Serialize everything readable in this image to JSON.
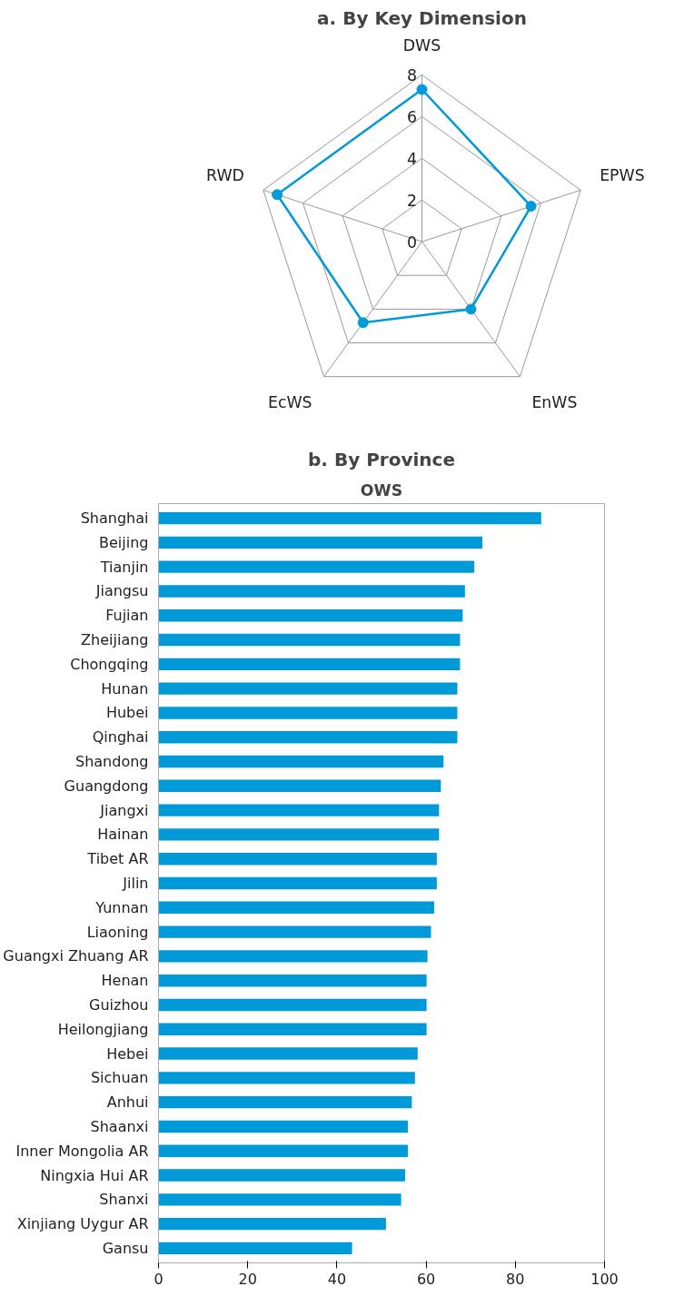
{
  "chart_data": [
    {
      "type": "radar",
      "title": "a. By Key Dimension",
      "categories": [
        "DWS",
        "EPWS",
        "EnWS",
        "EcWS",
        "RWD"
      ],
      "ylim": [
        0,
        8
      ],
      "yticks": [
        0,
        2,
        4,
        6,
        8
      ],
      "grid": true,
      "marker": "circle",
      "series": [
        {
          "color": "#009ad9",
          "values": [
            7.3,
            5.5,
            4.0,
            4.8,
            7.3
          ]
        }
      ]
    },
    {
      "type": "bar",
      "orientation": "horizontal",
      "title": "b. By Province",
      "subtitle": "OWS",
      "xlim": [
        0,
        100
      ],
      "xticks": [
        0,
        20,
        40,
        60,
        80,
        100
      ],
      "grid": false,
      "categories": [
        "Shanghai",
        "Beijing",
        "Tianjin",
        "Jiangsu",
        "Fujian",
        "Zheijiang",
        "Chongqing",
        "Hunan",
        "Hubei",
        "Qinghai",
        "Shandong",
        "Guangdong",
        "Jiangxi",
        "Hainan",
        "Tibet AR",
        "Jilin",
        "Yunnan",
        "Liaoning",
        "Guangxi Zhuang AR",
        "Henan",
        "Guizhou",
        "Heilongjiang",
        "Hebei",
        "Sichuan",
        "Anhui",
        "Shaanxi",
        "Inner Mongolia AR",
        "Ningxia Hui AR",
        "Shanxi",
        "Xinjiang Uygur AR",
        "Gansu"
      ],
      "series": [
        {
          "color": "#009ad9",
          "values": [
            85.8,
            72.6,
            70.8,
            68.7,
            68.2,
            67.6,
            67.6,
            67.0,
            67.0,
            67.0,
            63.9,
            63.3,
            62.9,
            62.9,
            62.4,
            62.4,
            61.8,
            61.1,
            60.3,
            60.1,
            60.1,
            60.1,
            58.1,
            57.5,
            56.8,
            55.9,
            55.9,
            55.3,
            54.4,
            51.0,
            43.4
          ]
        }
      ]
    }
  ]
}
